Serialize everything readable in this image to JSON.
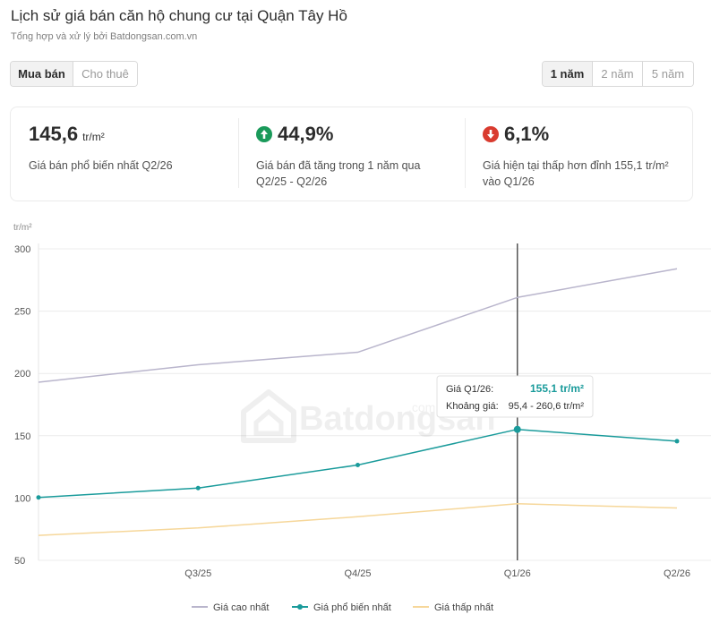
{
  "header": {
    "title": "Lịch sử giá bán căn hộ chung cư tại Quận Tây Hồ",
    "subtitle": "Tổng hợp và xử lý bởi Batdongsan.com.vn"
  },
  "tabs_type": [
    {
      "label": "Mua bán",
      "active": true
    },
    {
      "label": "Cho thuê",
      "active": false
    }
  ],
  "tabs_range": [
    {
      "label": "1 năm",
      "active": true
    },
    {
      "label": "2 năm",
      "active": false
    },
    {
      "label": "5 năm",
      "active": false
    }
  ],
  "stats": [
    {
      "value": "145,6",
      "unit": "tr/m²",
      "desc_line1": "Giá bán phổ biến nhất Q2/26",
      "desc_line2": ""
    },
    {
      "value": "44,9%",
      "icon": "arrow-up-icon",
      "icon_color": "#1a9a5a",
      "desc_line1": "Giá bán đã tăng trong 1 năm qua",
      "desc_line2": "Q2/25 - Q2/26"
    },
    {
      "value": "6,1%",
      "icon": "arrow-down-icon",
      "icon_color": "#d93b2f",
      "desc_line1": "Giá hiện tại thấp hơn đỉnh 155,1 tr/m²",
      "desc_line2": "vào Q1/26"
    }
  ],
  "watermark": {
    "text": "Batdongsan",
    "suffix": ".com"
  },
  "chart_data": {
    "type": "line",
    "ylabel": "tr/m²",
    "ylim": [
      50,
      300
    ],
    "yticks": [
      "300",
      "250",
      "200",
      "150",
      "100",
      "50"
    ],
    "categories": [
      "Q2/25",
      "Q3/25",
      "Q4/25",
      "Q1/26",
      "Q2/26"
    ],
    "xtick_labels": [
      "",
      "Q3/25",
      "Q4/25",
      "Q1/26",
      "Q2/26"
    ],
    "grid": true,
    "legend_position": "bottom",
    "series": [
      {
        "name": "Giá cao nhất",
        "values": [
          193,
          207,
          217,
          261,
          284
        ],
        "color": "#b9b5cc",
        "markers": false
      },
      {
        "name": "Giá phổ biến nhất",
        "values": [
          100.5,
          108,
          126.5,
          155.1,
          145.6
        ],
        "color": "#1a9b9b",
        "markers": true
      },
      {
        "name": "Giá thấp nhất",
        "values": [
          70,
          76,
          85,
          95.4,
          92
        ],
        "color": "#f6d79a",
        "markers": false
      }
    ],
    "highlight_index": 3,
    "tooltip": {
      "label1": "Giá Q1/26:",
      "value1": "155,1 tr/m²",
      "label2": "Khoảng giá:",
      "value2": "95,4 - 260,6 tr/m²"
    }
  }
}
